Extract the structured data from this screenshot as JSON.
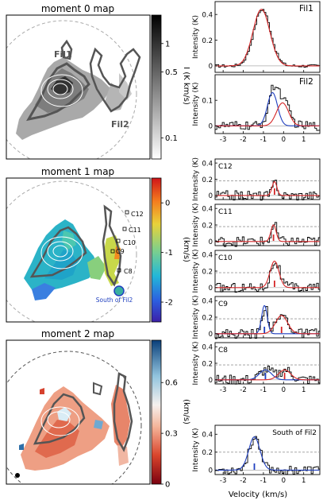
{
  "maps": [
    {
      "title": "moment 0 map",
      "cbar_label": "I (K km/s)",
      "cbar_ticks": [
        "1",
        "0.5",
        "0.1"
      ],
      "cbar_values": [
        1,
        0.5,
        0.1
      ],
      "labels": [
        "Fil1",
        "Fil2"
      ]
    },
    {
      "title": "moment 1 map",
      "cbar_label": "(km/s)",
      "cbar_ticks": [
        "0",
        "-1",
        "-2"
      ],
      "cbar_values": [
        0,
        -1,
        -2
      ],
      "labels": [
        "C12",
        "C11",
        "C10",
        "C9",
        "C8",
        "South of Fil2"
      ]
    },
    {
      "title": "moment 2 map",
      "cbar_label": "(km/s)",
      "cbar_ticks": [
        "0.6",
        "0.3",
        "0"
      ],
      "cbar_values": [
        0.6,
        0.3,
        0
      ],
      "labels": []
    }
  ],
  "chart_data": {
    "type": "line",
    "xlabel": "Velocity (km/s)",
    "ylabel": "Intensity (K)",
    "xlim": [
      -3.4,
      1.8
    ],
    "x_ticks": [
      "-3",
      "-2",
      "-1",
      "0",
      "1"
    ],
    "x_tick_values": [
      -3,
      -2,
      -1,
      0,
      1
    ],
    "panels": [
      {
        "name": "Fil1",
        "ylim": [
          -0.05,
          0.5
        ],
        "yticks": [
          "0.4",
          "0.2",
          "0"
        ],
        "ytick_values": [
          0.4,
          0.2,
          0
        ],
        "fits": [
          {
            "color": "#d62728",
            "mu": -1.1,
            "amp": 0.44,
            "sigma": 0.42
          }
        ],
        "markers": [],
        "noise": 0.012,
        "ref": null
      },
      {
        "name": "Fil2",
        "ylim": [
          -0.03,
          0.2
        ],
        "yticks": [
          "0.1",
          "0"
        ],
        "ytick_values": [
          0.1,
          0
        ],
        "fits": [
          {
            "color": "#1f3fbf",
            "mu": -0.55,
            "amp": 0.13,
            "sigma": 0.25
          },
          {
            "color": "#d62728",
            "mu": -0.05,
            "amp": 0.09,
            "sigma": 0.3
          }
        ],
        "markers": [],
        "noise": 0.018,
        "ref": null
      },
      {
        "name": "C12",
        "ylim": [
          -0.05,
          0.45
        ],
        "yticks": [
          "0.4",
          "0.2",
          "0"
        ],
        "ytick_values": [
          0.4,
          0.2,
          0
        ],
        "fits": [
          {
            "color": "#d62728",
            "mu": -0.45,
            "amp": 0.17,
            "sigma": 0.12
          }
        ],
        "markers": [
          {
            "color": "#d62728",
            "x": -0.45
          }
        ],
        "noise": 0.06,
        "ref": 0.18
      },
      {
        "name": "C11",
        "ylim": [
          -0.05,
          0.45
        ],
        "yticks": [
          "0.4",
          "0.2",
          "0"
        ],
        "ytick_values": [
          0.4,
          0.2,
          0
        ],
        "fits": [
          {
            "color": "#d62728",
            "mu": -0.5,
            "amp": 0.2,
            "sigma": 0.13
          }
        ],
        "markers": [
          {
            "color": "#d62728",
            "x": -0.5
          }
        ],
        "noise": 0.06,
        "ref": 0.18
      },
      {
        "name": "C10",
        "ylim": [
          -0.05,
          0.45
        ],
        "yticks": [
          "0.4",
          "0.2",
          "0"
        ],
        "ytick_values": [
          0.4,
          0.2,
          0
        ],
        "fits": [
          {
            "color": "#d62728",
            "mu": -0.45,
            "amp": 0.32,
            "sigma": 0.22
          }
        ],
        "markers": [
          {
            "color": "#d62728",
            "x": -0.45
          }
        ],
        "noise": 0.06,
        "ref": 0.18
      },
      {
        "name": "C9",
        "ylim": [
          -0.05,
          0.45
        ],
        "yticks": [
          "0.4",
          "0.2",
          "0"
        ],
        "ytick_values": [
          0.4,
          0.2,
          0
        ],
        "fits": [
          {
            "color": "#1f3fbf",
            "mu": -0.95,
            "amp": 0.34,
            "sigma": 0.14
          },
          {
            "color": "#d62728",
            "mu": -0.1,
            "amp": 0.22,
            "sigma": 0.3
          }
        ],
        "markers": [
          {
            "color": "#1f3fbf",
            "x": -0.95
          },
          {
            "color": "#d62728",
            "x": -0.1
          }
        ],
        "noise": 0.06,
        "ref": 0.18
      },
      {
        "name": "C8",
        "ylim": [
          -0.05,
          0.45
        ],
        "yticks": [
          "0.4",
          "0.2",
          "0"
        ],
        "ytick_values": [
          0.4,
          0.2,
          0
        ],
        "fits": [
          {
            "color": "#1f3fbf",
            "mu": -0.9,
            "amp": 0.12,
            "sigma": 0.3
          },
          {
            "color": "#d62728",
            "mu": 0.05,
            "amp": 0.12,
            "sigma": 0.3
          }
        ],
        "markers": [
          {
            "color": "#1f3fbf",
            "x": -0.9
          },
          {
            "color": "#d62728",
            "x": 0.05
          }
        ],
        "noise": 0.06,
        "ref": 0.18
      },
      {
        "name": "South of Fil2",
        "ylim": [
          -0.05,
          0.5
        ],
        "yticks": [
          "0.4",
          "0.2",
          "0"
        ],
        "ytick_values": [
          0.4,
          0.2,
          0
        ],
        "fits": [
          {
            "color": "#1f3fbf",
            "mu": -1.45,
            "amp": 0.37,
            "sigma": 0.28
          }
        ],
        "markers": [
          {
            "color": "#1f3fbf",
            "x": -1.45
          }
        ],
        "noise": 0.05,
        "ref": 0.2
      }
    ]
  }
}
